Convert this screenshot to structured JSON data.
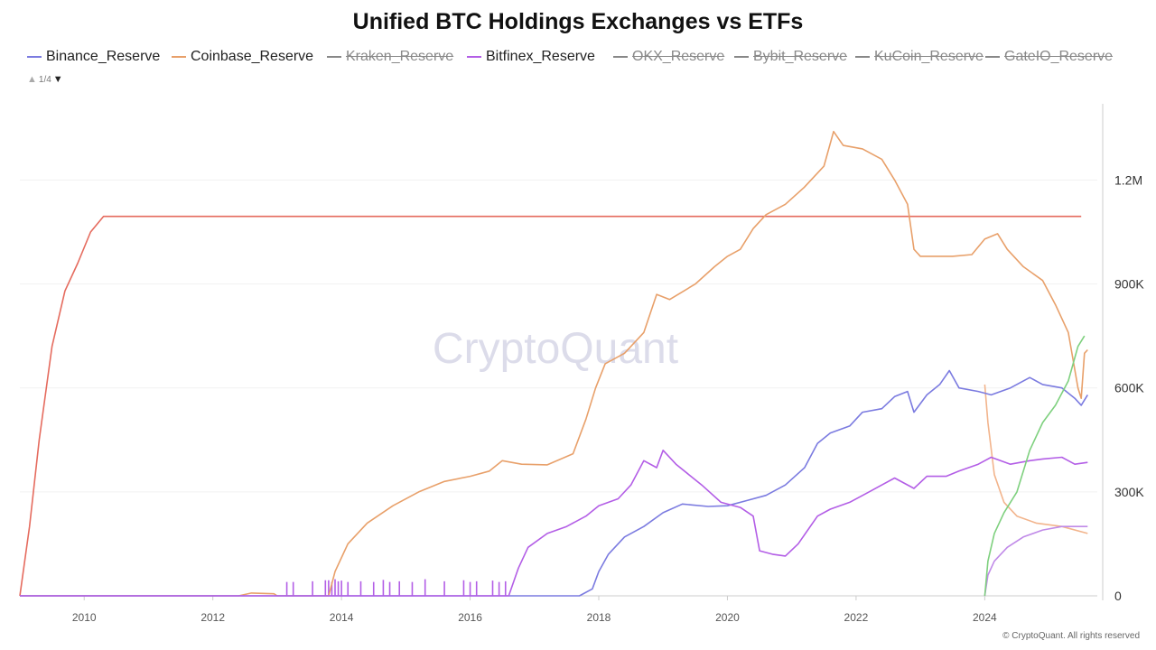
{
  "title": "Unified BTC Holdings Exchanges vs ETFs",
  "legend": [
    {
      "label": "Binance_Reserve",
      "color": "#7b7be0",
      "hidden": false
    },
    {
      "label": "Coinbase_Reserve",
      "color": "#e8a06a",
      "hidden": false
    },
    {
      "label": "Kraken_Reserve",
      "color": "#888888",
      "hidden": true
    },
    {
      "label": "Bitfinex_Reserve",
      "color": "#b35ee6",
      "hidden": false
    },
    {
      "label": "OKX_Reserve",
      "color": "#888888",
      "hidden": true
    },
    {
      "label": "Bybit_Reserve",
      "color": "#888888",
      "hidden": true
    },
    {
      "label": "KuCoin_Reserve",
      "color": "#888888",
      "hidden": true
    },
    {
      "label": "GateIO_Reserve",
      "color": "#888888",
      "hidden": true
    }
  ],
  "pager": {
    "text": "1/4"
  },
  "watermark": "CryptoQuant",
  "footer": "© CryptoQuant. All rights reserved",
  "chart_data": {
    "type": "line",
    "x_ticks": [
      2010,
      2012,
      2014,
      2016,
      2018,
      2020,
      2022,
      2024
    ],
    "y_ticks": [
      {
        "value": 0,
        "label": "0"
      },
      {
        "value": 300000,
        "label": "300K"
      },
      {
        "value": 600000,
        "label": "600K"
      },
      {
        "value": 900000,
        "label": "900K"
      },
      {
        "value": 1200000,
        "label": "1.2M"
      }
    ],
    "xlim": [
      2009.0,
      2025.75
    ],
    "ylim": [
      0,
      1420000
    ],
    "grid": true,
    "legend_position": "top",
    "series": [
      {
        "color": "#e56b5e",
        "points": [
          [
            2009.0,
            0
          ],
          [
            2009.15,
            200000
          ],
          [
            2009.3,
            450000
          ],
          [
            2009.5,
            720000
          ],
          [
            2009.7,
            880000
          ],
          [
            2009.9,
            960000
          ],
          [
            2010.1,
            1050000
          ],
          [
            2010.3,
            1095000
          ],
          [
            2025.5,
            1095000
          ]
        ]
      },
      {
        "name": "Coinbase_Reserve",
        "color": "#e8a06a",
        "points": [
          [
            2009.0,
            0
          ],
          [
            2012.4,
            0
          ],
          [
            2012.6,
            8000
          ],
          [
            2012.95,
            6000
          ],
          [
            2013.0,
            0
          ],
          [
            2013.8,
            0
          ],
          [
            2013.9,
            70000
          ],
          [
            2014.1,
            150000
          ],
          [
            2014.4,
            210000
          ],
          [
            2014.8,
            260000
          ],
          [
            2015.2,
            300000
          ],
          [
            2015.6,
            330000
          ],
          [
            2016.0,
            345000
          ],
          [
            2016.3,
            360000
          ],
          [
            2016.5,
            390000
          ],
          [
            2016.8,
            380000
          ],
          [
            2017.2,
            378000
          ],
          [
            2017.6,
            410000
          ],
          [
            2017.8,
            510000
          ],
          [
            2017.95,
            600000
          ],
          [
            2018.1,
            670000
          ],
          [
            2018.4,
            700000
          ],
          [
            2018.7,
            760000
          ],
          [
            2018.9,
            870000
          ],
          [
            2019.1,
            855000
          ],
          [
            2019.5,
            900000
          ],
          [
            2019.8,
            950000
          ],
          [
            2020.0,
            980000
          ],
          [
            2020.2,
            1000000
          ],
          [
            2020.4,
            1060000
          ],
          [
            2020.6,
            1100000
          ],
          [
            2020.9,
            1130000
          ],
          [
            2021.2,
            1180000
          ],
          [
            2021.5,
            1240000
          ],
          [
            2021.65,
            1340000
          ],
          [
            2021.8,
            1300000
          ],
          [
            2022.1,
            1290000
          ],
          [
            2022.4,
            1260000
          ],
          [
            2022.6,
            1200000
          ],
          [
            2022.8,
            1130000
          ],
          [
            2022.9,
            1000000
          ],
          [
            2023.0,
            980000
          ],
          [
            2023.5,
            980000
          ],
          [
            2023.8,
            985000
          ],
          [
            2024.0,
            1030000
          ],
          [
            2024.2,
            1045000
          ],
          [
            2024.35,
            1000000
          ],
          [
            2024.6,
            950000
          ],
          [
            2024.9,
            910000
          ],
          [
            2025.1,
            840000
          ],
          [
            2025.3,
            760000
          ],
          [
            2025.45,
            600000
          ],
          [
            2025.5,
            570000
          ],
          [
            2025.55,
            700000
          ],
          [
            2025.6,
            710000
          ]
        ]
      },
      {
        "color": "#f2b48c",
        "points": [
          [
            2024.0,
            610000
          ],
          [
            2024.05,
            500000
          ],
          [
            2024.15,
            350000
          ],
          [
            2024.3,
            270000
          ],
          [
            2024.5,
            230000
          ],
          [
            2024.8,
            210000
          ],
          [
            2025.2,
            200000
          ],
          [
            2025.6,
            180000
          ]
        ]
      },
      {
        "name": "Binance_Reserve",
        "color": "#7b7be0",
        "points": [
          [
            2009.0,
            0
          ],
          [
            2017.7,
            0
          ],
          [
            2017.9,
            20000
          ],
          [
            2018.0,
            70000
          ],
          [
            2018.15,
            120000
          ],
          [
            2018.4,
            170000
          ],
          [
            2018.7,
            200000
          ],
          [
            2019.0,
            240000
          ],
          [
            2019.3,
            265000
          ],
          [
            2019.7,
            258000
          ],
          [
            2020.0,
            260000
          ],
          [
            2020.3,
            275000
          ],
          [
            2020.6,
            290000
          ],
          [
            2020.9,
            320000
          ],
          [
            2021.2,
            370000
          ],
          [
            2021.4,
            440000
          ],
          [
            2021.6,
            470000
          ],
          [
            2021.9,
            490000
          ],
          [
            2022.1,
            530000
          ],
          [
            2022.4,
            540000
          ],
          [
            2022.6,
            575000
          ],
          [
            2022.8,
            590000
          ],
          [
            2022.9,
            530000
          ],
          [
            2023.1,
            580000
          ],
          [
            2023.3,
            610000
          ],
          [
            2023.45,
            650000
          ],
          [
            2023.6,
            600000
          ],
          [
            2023.9,
            590000
          ],
          [
            2024.1,
            580000
          ],
          [
            2024.4,
            600000
          ],
          [
            2024.7,
            630000
          ],
          [
            2024.9,
            610000
          ],
          [
            2025.2,
            600000
          ],
          [
            2025.4,
            570000
          ],
          [
            2025.5,
            550000
          ],
          [
            2025.6,
            580000
          ]
        ]
      },
      {
        "name": "Bitfinex_Reserve",
        "color": "#b35ee6",
        "points": [
          [
            2009.0,
            0
          ],
          [
            2016.6,
            0
          ],
          [
            2016.75,
            80000
          ],
          [
            2016.9,
            140000
          ],
          [
            2017.2,
            180000
          ],
          [
            2017.5,
            200000
          ],
          [
            2017.8,
            230000
          ],
          [
            2018.0,
            260000
          ],
          [
            2018.3,
            280000
          ],
          [
            2018.5,
            320000
          ],
          [
            2018.7,
            390000
          ],
          [
            2018.9,
            370000
          ],
          [
            2019.0,
            420000
          ],
          [
            2019.2,
            380000
          ],
          [
            2019.4,
            350000
          ],
          [
            2019.6,
            320000
          ],
          [
            2019.9,
            270000
          ],
          [
            2020.2,
            255000
          ],
          [
            2020.4,
            230000
          ],
          [
            2020.5,
            130000
          ],
          [
            2020.7,
            120000
          ],
          [
            2020.9,
            115000
          ],
          [
            2021.1,
            150000
          ],
          [
            2021.4,
            230000
          ],
          [
            2021.6,
            250000
          ],
          [
            2021.9,
            270000
          ],
          [
            2022.2,
            300000
          ],
          [
            2022.4,
            320000
          ],
          [
            2022.6,
            340000
          ],
          [
            2022.9,
            310000
          ],
          [
            2023.1,
            345000
          ],
          [
            2023.4,
            345000
          ],
          [
            2023.6,
            360000
          ],
          [
            2023.9,
            380000
          ],
          [
            2024.1,
            400000
          ],
          [
            2024.4,
            380000
          ],
          [
            2024.7,
            390000
          ],
          [
            2024.9,
            395000
          ],
          [
            2025.2,
            400000
          ],
          [
            2025.4,
            380000
          ],
          [
            2025.6,
            385000
          ]
        ]
      },
      {
        "color": "#c08ae8",
        "points": [
          [
            2024.0,
            0
          ],
          [
            2024.05,
            60000
          ],
          [
            2024.15,
            100000
          ],
          [
            2024.35,
            140000
          ],
          [
            2024.6,
            170000
          ],
          [
            2024.9,
            190000
          ],
          [
            2025.2,
            200000
          ],
          [
            2025.6,
            200000
          ]
        ]
      },
      {
        "color": "#7ed07e",
        "points": [
          [
            2024.0,
            0
          ],
          [
            2024.05,
            100000
          ],
          [
            2024.15,
            180000
          ],
          [
            2024.3,
            240000
          ],
          [
            2024.5,
            300000
          ],
          [
            2024.7,
            420000
          ],
          [
            2024.9,
            500000
          ],
          [
            2025.1,
            550000
          ],
          [
            2025.3,
            620000
          ],
          [
            2025.45,
            720000
          ],
          [
            2025.55,
            750000
          ]
        ]
      }
    ],
    "spikes": {
      "color": "#b35ee6",
      "x": [
        2013.15,
        2013.25,
        2013.55,
        2013.75,
        2013.8,
        2013.85,
        2013.9,
        2013.95,
        2014.0,
        2014.1,
        2014.3,
        2014.5,
        2014.65,
        2014.75,
        2014.9,
        2015.1,
        2015.3,
        2015.6,
        2015.9,
        2016.0,
        2016.1,
        2016.35,
        2016.45,
        2016.55
      ],
      "heights": [
        40000,
        40000,
        42000,
        45000,
        45000,
        40000,
        48000,
        42000,
        44000,
        40000,
        42000,
        40000,
        46000,
        40000,
        42000,
        40000,
        48000,
        42000,
        45000,
        40000,
        42000,
        44000,
        40000,
        42000
      ]
    }
  }
}
